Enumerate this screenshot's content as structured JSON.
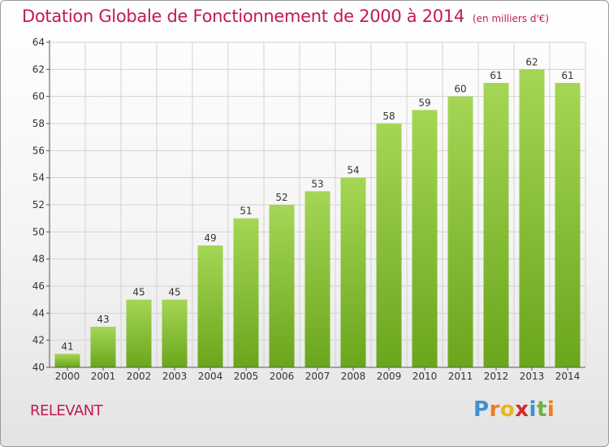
{
  "header": {
    "title": "Dotation Globale de Fonctionnement de 2000 à 2014",
    "subtitle": "(en milliers d'€)"
  },
  "footer": {
    "commune": "RELEVANT",
    "logo": {
      "text": "Proxiti",
      "letters": [
        "P",
        "r",
        "o",
        "x",
        "i",
        "t",
        "i"
      ],
      "letter_colors": [
        "#3f8fd2",
        "#f07d1a",
        "#e8b51d",
        "#d8262e",
        "#3f8fd2",
        "#6cb33f",
        "#f07d1a"
      ]
    }
  },
  "colors": {
    "title": "#c31a52",
    "bar_light": "#a5d655",
    "bar_dark": "#6aa61c",
    "grid": "#d2d2d2",
    "axis": "#555555",
    "text": "#333333"
  },
  "chart_data": {
    "type": "bar",
    "categories": [
      "2000",
      "2001",
      "2002",
      "2003",
      "2004",
      "2005",
      "2006",
      "2007",
      "2008",
      "2009",
      "2010",
      "2011",
      "2012",
      "2013",
      "2014"
    ],
    "values": [
      41,
      43,
      45,
      45,
      49,
      51,
      52,
      53,
      54,
      58,
      59,
      60,
      61,
      62,
      61
    ],
    "title": "Dotation Globale de Fonctionnement de 2000 à 2014",
    "subtitle": "(en milliers d'€)",
    "xlabel": "",
    "ylabel": "",
    "ylim": [
      40,
      64
    ],
    "yticks": [
      40,
      42,
      44,
      46,
      48,
      50,
      52,
      54,
      56,
      58,
      60,
      62,
      64
    ],
    "grid": true,
    "legend": "none",
    "data_labels": true
  }
}
